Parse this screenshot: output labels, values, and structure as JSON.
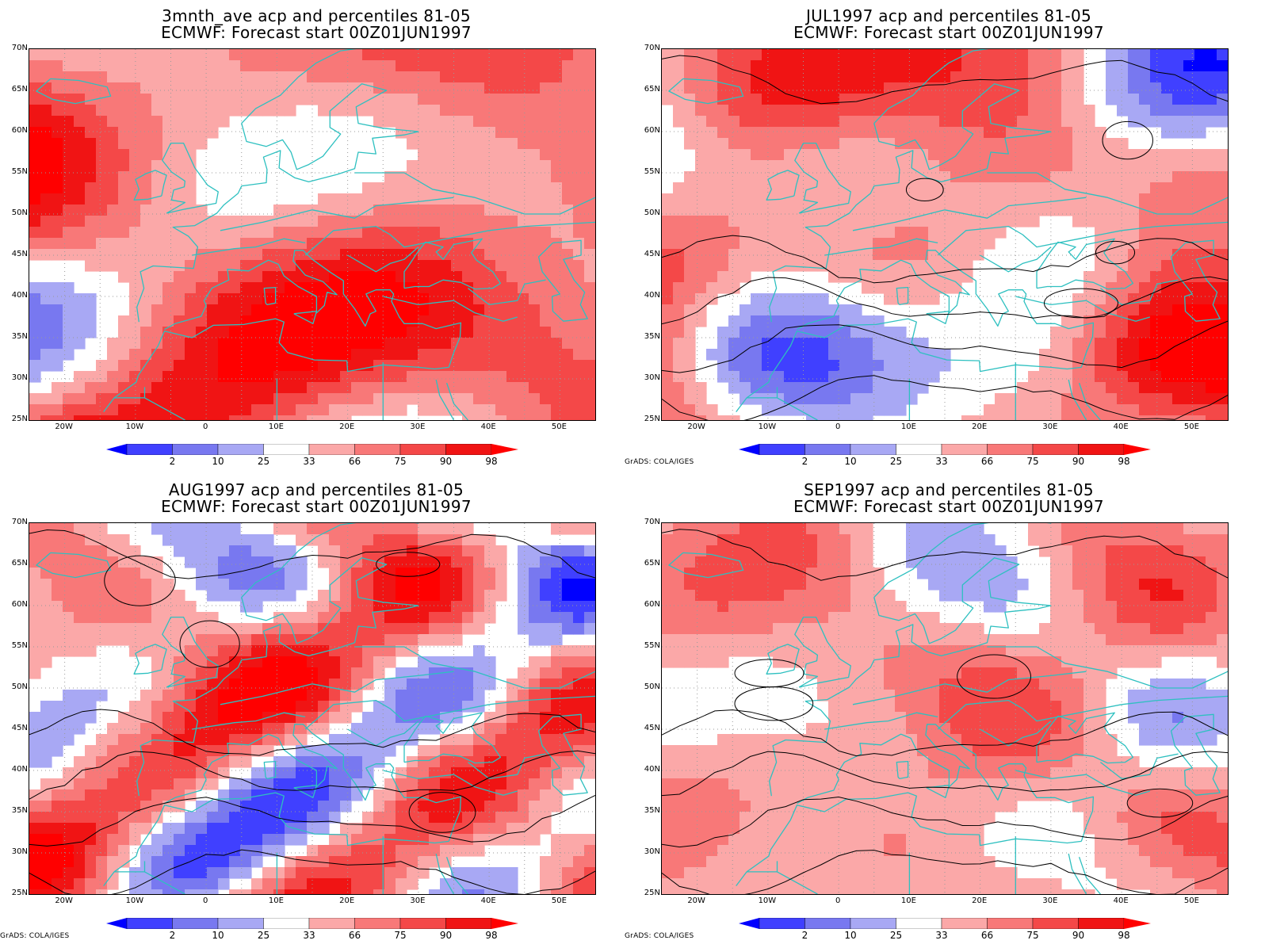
{
  "panels": [
    {
      "id": "p1",
      "title1": "3mnth_ave acp and percentiles 81-05",
      "title2": "ECMWF: Forecast start 00Z01JUN1997",
      "credit": "",
      "contours": false
    },
    {
      "id": "p2",
      "title1": "JUL1997 acp and percentiles 81-05",
      "title2": "ECMWF: Forecast start 00Z01JUN1997",
      "credit": "GrADS: COLA/IGES",
      "contours": true
    },
    {
      "id": "p3",
      "title1": "AUG1997 acp and percentiles 81-05",
      "title2": "ECMWF: Forecast start 00Z01JUN1997",
      "credit": "GrADS: COLA/IGES",
      "contours": true
    },
    {
      "id": "p4",
      "title1": "SEP1997 acp and percentiles 81-05",
      "title2": "ECMWF: Forecast start 00Z01JUN1997",
      "credit": "GrADS: COLA/IGES",
      "contours": true
    }
  ],
  "lat_labels": [
    "70N",
    "65N",
    "60N",
    "55N",
    "50N",
    "45N",
    "40N",
    "35N",
    "30N",
    "25N"
  ],
  "lon_labels": [
    "20W",
    "10W",
    "0",
    "10E",
    "20E",
    "30E",
    "40E",
    "50E"
  ],
  "colorbar": {
    "labels": [
      "2",
      "10",
      "25",
      "33",
      "66",
      "75",
      "90",
      "98"
    ],
    "colors": [
      "#0000ff",
      "#4040ff",
      "#7878f0",
      "#a8a8f4",
      "#ffffff",
      "#fba8a8",
      "#f87878",
      "#f44848",
      "#f01414",
      "#ff0000"
    ]
  },
  "colors": {
    "coast": "#2ec0c0",
    "grid": "#9a9a9a",
    "contour": "#000000"
  }
}
